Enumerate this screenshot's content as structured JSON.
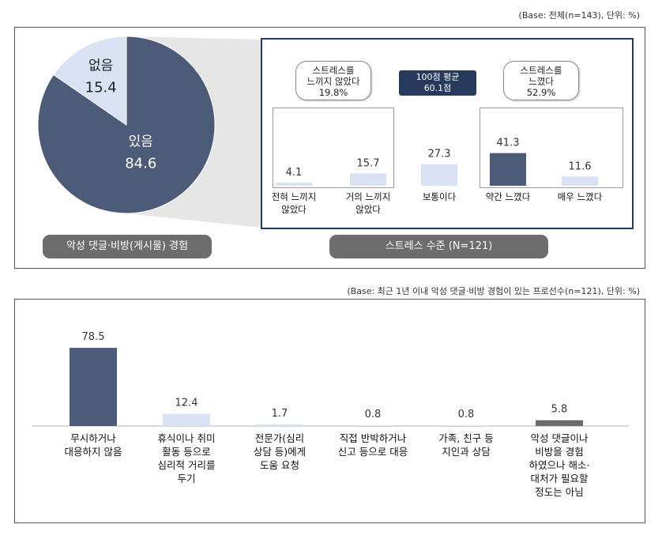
{
  "top_note": "(Base: 전체(n=143), 단위: %)",
  "bottom_note": "(Base: 최근 1년 이내 악성 댓글·비방 경험이 있는 프로선수(n=121), 단위: %)",
  "colors": {
    "dark": "#4b5b78",
    "light": "#d9e2f3",
    "pill": "#6d6d6d",
    "navy": "#263a5e"
  },
  "chart_data": [
    {
      "type": "pie",
      "title": "악성 댓글·비방(게시물) 경험",
      "slices": [
        {
          "label": "있음",
          "value": 84.6,
          "display": "84.6"
        },
        {
          "label": "없음",
          "value": 15.4,
          "display": "15.4"
        }
      ]
    },
    {
      "type": "bar",
      "title": "스트레스 수준 (N=121)",
      "categories": [
        "전혀 느끼지\n않았다",
        "거의 느끼지\n않았다",
        "보통이다",
        "약간 느꼈다",
        "매우 느꼈다"
      ],
      "values": [
        4.1,
        15.7,
        27.3,
        41.3,
        11.6
      ],
      "value_labels": [
        "4.1",
        "15.7",
        "27.3",
        "41.3",
        "11.6"
      ],
      "highlight_index": 3,
      "ylim": [
        0,
        100
      ],
      "annotations": {
        "not_felt": {
          "line1": "스트레스를",
          "line2": "느끼지 않았다",
          "line3": "19.8%"
        },
        "avg": {
          "line1": "100점 평균",
          "line2": "60.1점"
        },
        "felt": {
          "line1": "스트레스를",
          "line2": "느꼈다",
          "line3": "52.9%"
        }
      }
    },
    {
      "type": "bar",
      "title": "",
      "categories": [
        "무시하거나\n대응하지 않음",
        "휴식이나 취미\n활동 등으로\n심리적 거리를\n두기",
        "전문가(심리\n상담 등)에게\n도움 요청",
        "직접 반박하거나\n신고 등으로 대응",
        "가족, 친구 등\n지인과 상담",
        "악성 댓글이나\n비방을 경험\n하였으나 해소·\n대처가 필요할\n정도는 아님"
      ],
      "values": [
        78.5,
        12.4,
        1.7,
        0.8,
        0.8,
        5.8
      ],
      "value_labels": [
        "78.5",
        "12.4",
        "1.7",
        "0.8",
        "0.8",
        "5.8"
      ],
      "ylim": [
        0,
        100
      ]
    }
  ]
}
